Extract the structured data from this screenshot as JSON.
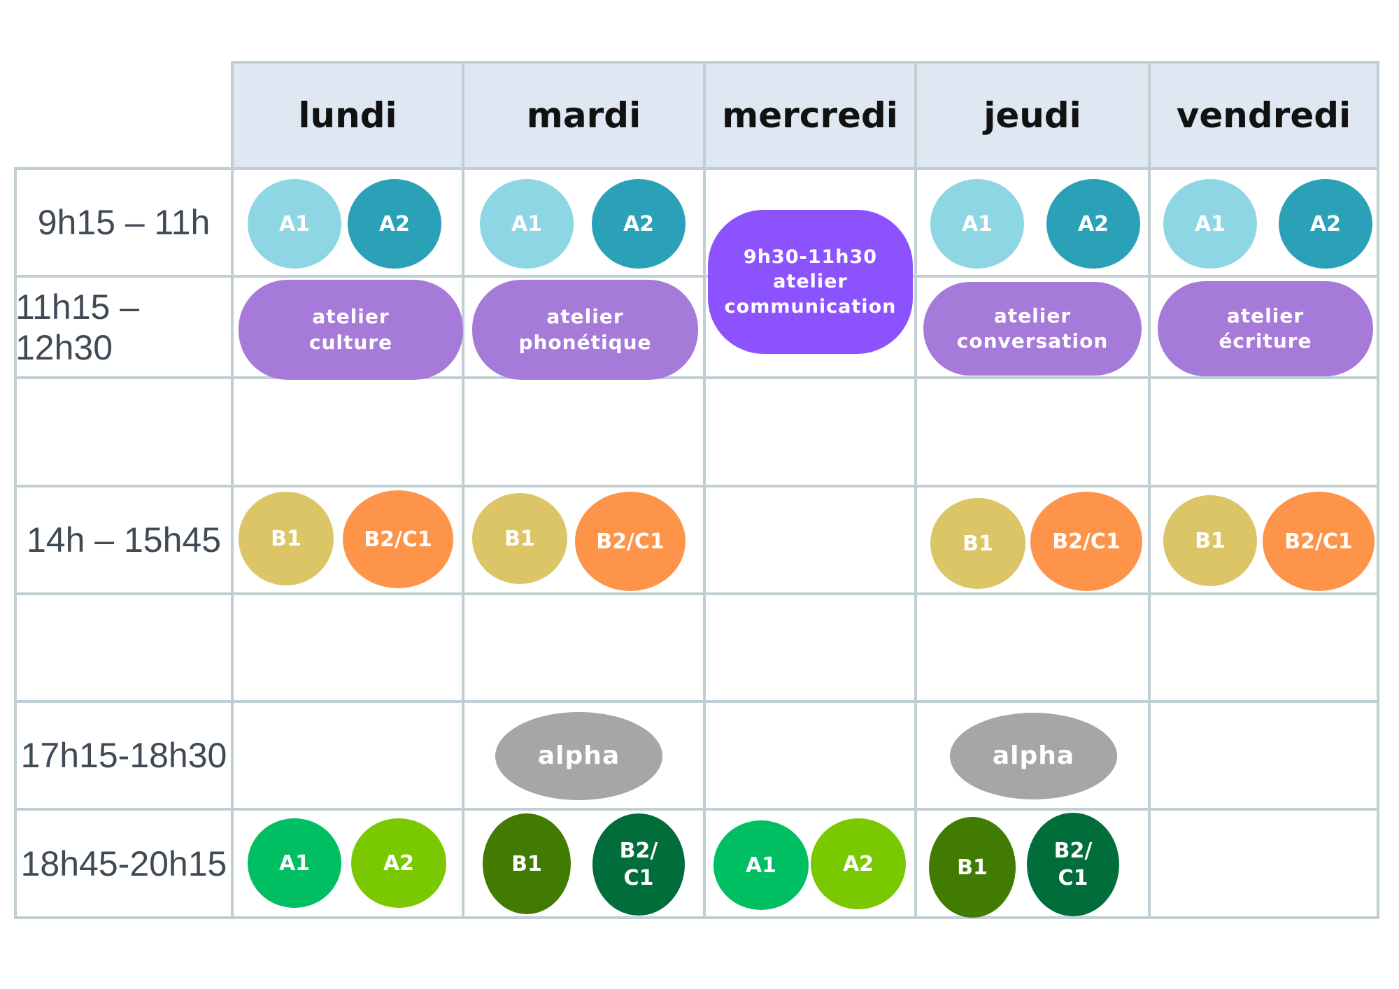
{
  "days": [
    "lundi",
    "mardi",
    "mercredi",
    "jeudi",
    "vendredi"
  ],
  "times": [
    "9h15 – 11h",
    "11h15 – 12h30",
    "",
    "14h – 15h45",
    "",
    "17h15-18h30",
    "18h45-20h15"
  ],
  "colors": {
    "A1_morning": "#8ed6e4",
    "A2_morning": "#2aa1b7",
    "workshop": "#a67ad8",
    "communication": "#8c52fe",
    "B1_afternoon": "#dcc567",
    "B2C1_afternoon": "#fe934a",
    "alpha": "#a6a6a6",
    "A1_evening": "#00bf63",
    "A2_evening": "#7ac900",
    "B1_evening": "#417b01",
    "B2C1_evening": "#006d3a",
    "header_bg": "#dfe7f3",
    "grid": "#bfcfd3"
  },
  "schedule": {
    "lundi": {
      "morning": [
        "A1",
        "A2"
      ],
      "midday": "atelier\nculture",
      "afternoon": [
        "B1",
        "B2/C1"
      ],
      "evening": [
        "A1",
        "A2"
      ]
    },
    "mardi": {
      "morning": [
        "A1",
        "A2"
      ],
      "midday": "atelier\nphonétique",
      "afternoon": [
        "B1",
        "B2/C1"
      ],
      "late": "alpha",
      "evening": [
        "B1",
        "B2/\nC1"
      ]
    },
    "mercredi": {
      "morning": "9h30-11h30\natelier\ncommunication",
      "evening": [
        "A1",
        "A2"
      ]
    },
    "jeudi": {
      "morning": [
        "A1",
        "A2"
      ],
      "midday": "atelier\nconversation",
      "afternoon": [
        "B1",
        "B2/C1"
      ],
      "late": "alpha",
      "evening": [
        "B1",
        "B2/\nC1"
      ]
    },
    "vendredi": {
      "morning": [
        "A1",
        "A2"
      ],
      "midday": "atelier\nécriture",
      "afternoon": [
        "B1",
        "B2/C1"
      ]
    }
  }
}
